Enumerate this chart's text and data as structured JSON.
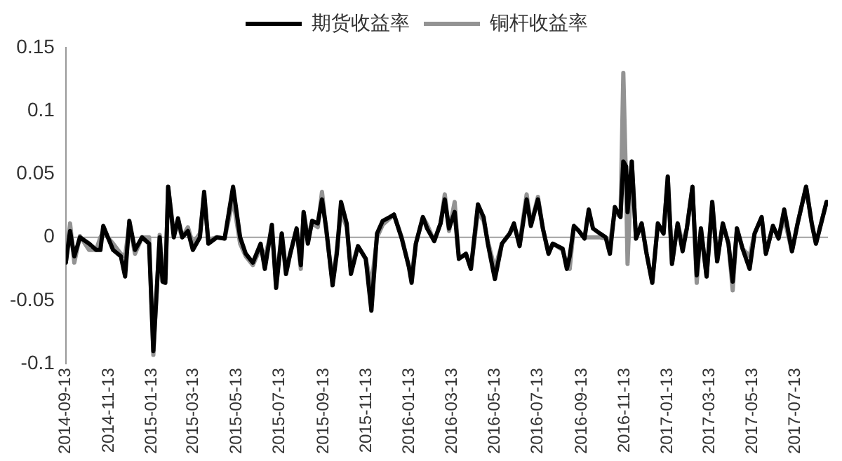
{
  "chart_data": {
    "type": "line",
    "x": [
      "2014-09-13",
      "2014-09-19",
      "2014-09-25",
      "2014-10-03",
      "2014-10-16",
      "2014-10-26",
      "2014-11-01",
      "2014-11-05",
      "2014-11-19",
      "2014-11-30",
      "2014-12-06",
      "2014-12-12",
      "2014-12-20",
      "2014-12-30",
      "2015-01-09",
      "2015-01-15",
      "2015-01-24",
      "2015-01-28",
      "2015-02-01",
      "2015-02-05",
      "2015-02-13",
      "2015-02-19",
      "2015-02-25",
      "2015-03-05",
      "2015-03-12",
      "2015-03-22",
      "2015-03-28",
      "2015-04-03",
      "2015-04-15",
      "2015-04-26",
      "2015-05-08",
      "2015-05-18",
      "2015-05-26",
      "2015-06-05",
      "2015-06-16",
      "2015-06-22",
      "2015-07-02",
      "2015-07-08",
      "2015-07-16",
      "2015-07-22",
      "2015-07-28",
      "2015-08-06",
      "2015-08-12",
      "2015-08-16",
      "2015-08-22",
      "2015-08-28",
      "2015-09-05",
      "2015-09-11",
      "2015-09-17",
      "2015-09-26",
      "2015-10-02",
      "2015-10-08",
      "2015-10-16",
      "2015-10-22",
      "2015-11-01",
      "2015-11-12",
      "2015-11-20",
      "2015-11-28",
      "2015-12-06",
      "2015-12-16",
      "2015-12-22",
      "2016-01-02",
      "2016-01-12",
      "2016-01-16",
      "2016-01-22",
      "2016-02-01",
      "2016-02-07",
      "2016-02-17",
      "2016-02-26",
      "2016-03-03",
      "2016-03-09",
      "2016-03-17",
      "2016-03-23",
      "2016-04-02",
      "2016-04-09",
      "2016-04-19",
      "2016-04-27",
      "2016-05-03",
      "2016-05-13",
      "2016-05-23",
      "2016-06-03",
      "2016-06-09",
      "2016-06-17",
      "2016-06-27",
      "2016-07-03",
      "2016-07-13",
      "2016-07-20",
      "2016-07-28",
      "2016-08-03",
      "2016-08-17",
      "2016-08-23",
      "2016-08-27",
      "2016-09-02",
      "2016-09-09",
      "2016-09-17",
      "2016-09-23",
      "2016-09-29",
      "2016-10-09",
      "2016-10-17",
      "2016-10-23",
      "2016-10-30",
      "2016-11-07",
      "2016-11-11",
      "2016-11-15",
      "2016-11-17",
      "2016-11-23",
      "2016-11-29",
      "2016-12-07",
      "2016-12-14",
      "2016-12-22",
      "2016-12-30",
      "2017-01-07",
      "2017-01-13",
      "2017-01-19",
      "2017-01-27",
      "2017-02-03",
      "2017-02-09",
      "2017-02-17",
      "2017-02-23",
      "2017-03-01",
      "2017-03-09",
      "2017-03-17",
      "2017-03-24",
      "2017-04-01",
      "2017-04-09",
      "2017-04-15",
      "2017-04-21",
      "2017-04-29",
      "2017-05-09",
      "2017-05-16",
      "2017-05-26",
      "2017-06-01",
      "2017-06-11",
      "2017-06-19",
      "2017-06-27",
      "2017-07-08",
      "2017-07-16",
      "2017-07-28",
      "2017-08-05",
      "2017-08-11",
      "2017-08-26"
    ],
    "series": [
      {
        "name": "期货收益率",
        "color": "#000000",
        "values": [
          -0.02,
          0.005,
          -0.015,
          0,
          -0.005,
          -0.01,
          -0.01,
          0.009,
          -0.01,
          -0.015,
          -0.031,
          0.013,
          -0.01,
          0,
          -0.005,
          -0.09,
          0,
          -0.035,
          -0.036,
          0.04,
          0,
          0.015,
          0,
          0.005,
          -0.01,
          0,
          0.036,
          -0.005,
          0,
          -0.001,
          0.04,
          0,
          -0.013,
          -0.02,
          -0.005,
          -0.025,
          0.01,
          -0.04,
          0.003,
          -0.029,
          -0.013,
          0.007,
          -0.022,
          0.02,
          -0.005,
          0.013,
          0.011,
          0.03,
          0.007,
          -0.038,
          -0.013,
          0.028,
          0.011,
          -0.029,
          -0.007,
          -0.017,
          -0.058,
          0.003,
          0.013,
          0.016,
          0.018,
          -0.001,
          -0.023,
          -0.036,
          -0.005,
          0.016,
          0.007,
          -0.003,
          0.011,
          0.03,
          0.007,
          0.02,
          -0.017,
          -0.013,
          -0.025,
          0.026,
          0.016,
          -0.005,
          -0.033,
          -0.005,
          0.003,
          0.011,
          -0.007,
          0.03,
          0.009,
          0.03,
          0.007,
          -0.013,
          -0.005,
          -0.009,
          -0.025,
          -0.015,
          0.009,
          0.005,
          -0.001,
          0.022,
          0.007,
          0.003,
          0,
          -0.013,
          0.024,
          0.016,
          0.06,
          0.056,
          0.02,
          0.06,
          -0.001,
          0.011,
          -0.013,
          -0.036,
          0.011,
          0.003,
          0.048,
          -0.021,
          0.011,
          -0.011,
          0.007,
          0.04,
          -0.03,
          0.007,
          -0.031,
          0.028,
          -0.019,
          0.011,
          -0.005,
          -0.035,
          0.007,
          -0.009,
          -0.025,
          0.003,
          0.016,
          -0.013,
          0.009,
          -0.001,
          0.022,
          -0.011,
          0.011,
          0.04,
          0.011,
          -0.005,
          0.028
        ]
      },
      {
        "name": "铜杆收益率",
        "color": "#939393",
        "values": [
          -0.02,
          0.011,
          -0.02,
          0.001,
          -0.01,
          -0.01,
          0,
          0.004,
          -0.005,
          -0.013,
          -0.015,
          0.01,
          -0.013,
          0,
          0,
          -0.093,
          0.002,
          -0.03,
          -0.033,
          0.04,
          0.003,
          0.01,
          0,
          0.008,
          -0.005,
          0.003,
          0.03,
          -0.002,
          0,
          -0.001,
          0.03,
          -0.005,
          -0.015,
          -0.022,
          -0.008,
          -0.015,
          0.005,
          -0.035,
          0.003,
          -0.025,
          -0.013,
          0.007,
          -0.025,
          0.02,
          0,
          0.011,
          0.008,
          0.036,
          0.005,
          -0.035,
          -0.01,
          0.02,
          0.008,
          -0.025,
          -0.007,
          -0.017,
          -0.038,
          0,
          0.01,
          0.015,
          0.018,
          0,
          -0.023,
          -0.03,
          -0.005,
          0.016,
          0.01,
          -0.003,
          0.011,
          0.034,
          0.005,
          0.028,
          -0.017,
          -0.013,
          -0.025,
          0.02,
          0.013,
          -0.003,
          -0.025,
          -0.005,
          0.003,
          0.009,
          -0.005,
          0.034,
          0.01,
          0.032,
          0.007,
          -0.013,
          -0.005,
          -0.01,
          -0.021,
          -0.025,
          0.009,
          0.005,
          0,
          0,
          0,
          0,
          -0.001,
          -0.005,
          0.02,
          0.016,
          0.13,
          0.04,
          -0.021,
          0.06,
          -0.001,
          0.011,
          -0.013,
          -0.036,
          0.011,
          0.003,
          0.048,
          -0.021,
          0.011,
          -0.005,
          0.007,
          0.04,
          -0.036,
          0.007,
          -0.031,
          0.028,
          -0.019,
          0.011,
          -0.005,
          -0.042,
          0.007,
          -0.009,
          -0.015,
          0.003,
          0.016,
          -0.013,
          0.009,
          0,
          0.015,
          -0.011,
          0.011,
          0.04,
          0.011,
          -0.005,
          0.028
        ]
      }
    ],
    "xlim": [
      "2014-09-13",
      "2017-08-28"
    ],
    "xticks": [
      "2014-09-13",
      "2014-11-13",
      "2015-01-13",
      "2015-03-13",
      "2015-05-13",
      "2015-07-13",
      "2015-09-13",
      "2015-11-13",
      "2016-01-13",
      "2016-03-13",
      "2016-05-13",
      "2016-07-13",
      "2016-09-13",
      "2016-11-13",
      "2017-01-13",
      "2017-03-13",
      "2017-05-13",
      "2017-07-13"
    ],
    "ylim": [
      -0.1,
      0.15
    ],
    "yticks": [
      -0.1,
      -0.05,
      0,
      0.05,
      0.1,
      0.15
    ],
    "ref_lines": [
      {
        "axis": "y",
        "value": 0,
        "color": "#a0a0a0"
      }
    ],
    "grid": false,
    "legend": "top",
    "marker": "none",
    "line_style": "solid"
  }
}
